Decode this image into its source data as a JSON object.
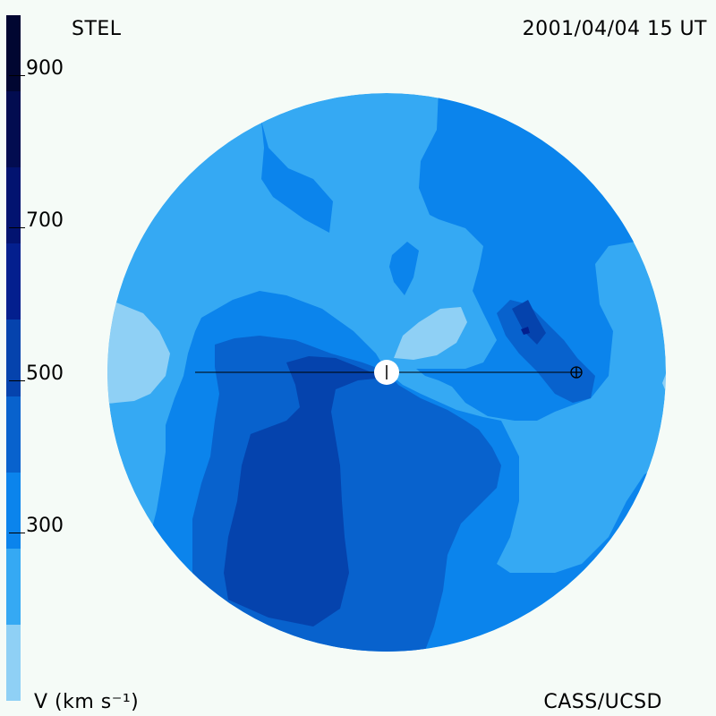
{
  "header": {
    "source": "STEL",
    "timestamp": "2001/04/04 15 UT"
  },
  "footer": {
    "variable": "V (km s⁻¹)",
    "credit": "CASS/UCSD"
  },
  "colorbar": {
    "min": 100,
    "max": 1000,
    "tick_labels": [
      "900",
      "700",
      "500",
      "300"
    ],
    "tick_values": [
      900,
      700,
      500,
      300
    ],
    "colors": [
      {
        "from": 100,
        "to": 200,
        "color": "#8fd0f5"
      },
      {
        "from": 200,
        "to": 300,
        "color": "#35a9f3"
      },
      {
        "from": 300,
        "to": 400,
        "color": "#0b84ec"
      },
      {
        "from": 400,
        "to": 500,
        "color": "#0862cd"
      },
      {
        "from": 500,
        "to": 600,
        "color": "#0543ad"
      },
      {
        "from": 600,
        "to": 700,
        "color": "#031f8e"
      },
      {
        "from": 700,
        "to": 800,
        "color": "#021370"
      },
      {
        "from": 800,
        "to": 900,
        "color": "#020c50"
      },
      {
        "from": 900,
        "to": 1000,
        "color": "#010631"
      }
    ]
  },
  "map": {
    "background_color": "#35a9f3",
    "sun_color": "#ffffff",
    "earth_symbol": "⊕"
  }
}
